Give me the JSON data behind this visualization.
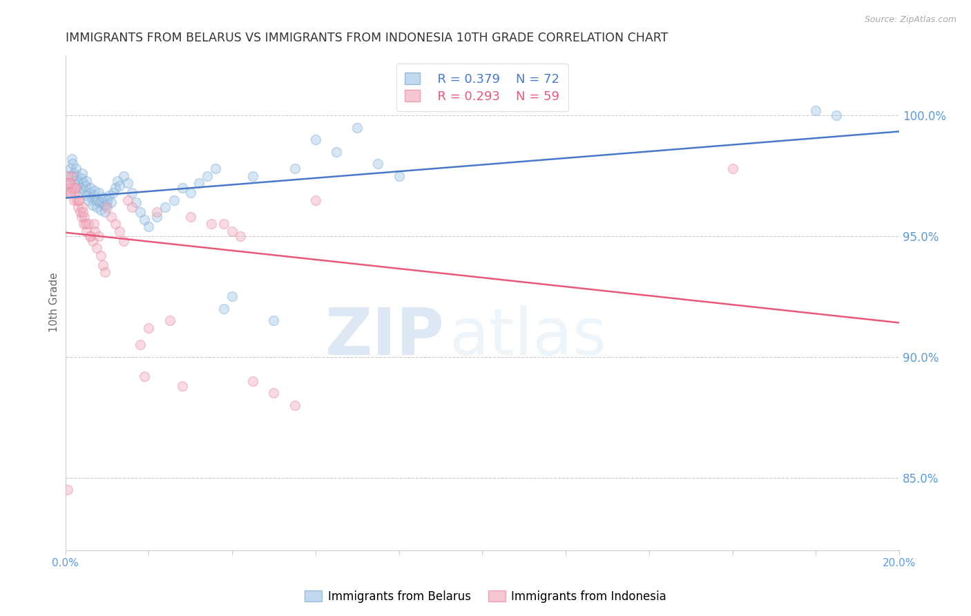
{
  "title": "IMMIGRANTS FROM BELARUS VS IMMIGRANTS FROM INDONESIA 10TH GRADE CORRELATION CHART",
  "source": "Source: ZipAtlas.com",
  "ylabel": "10th Grade",
  "xlim": [
    0.0,
    20.0
  ],
  "ylim": [
    82.0,
    102.5
  ],
  "xticks": [
    0.0,
    2.0,
    4.0,
    6.0,
    8.0,
    10.0,
    12.0,
    14.0,
    16.0,
    18.0,
    20.0
  ],
  "xticklabels": [
    "0.0%",
    "",
    "",
    "",
    "",
    "",
    "",
    "",
    "",
    "",
    "20.0%"
  ],
  "yticks_right": [
    85.0,
    90.0,
    95.0,
    100.0
  ],
  "yticklabels_right": [
    "85.0%",
    "90.0%",
    "95.0%",
    "100.0%"
  ],
  "grid_color": "#cccccc",
  "background_color": "#ffffff",
  "legend_r_belarus": "R = 0.379",
  "legend_n_belarus": "N = 72",
  "legend_r_indonesia": "R = 0.293",
  "legend_n_indonesia": "N = 59",
  "series1_label": "Immigrants from Belarus",
  "series2_label": "Immigrants from Indonesia",
  "series1_color": "#a8c8e8",
  "series2_color": "#f0b0c0",
  "series1_edge_color": "#7aaad0",
  "series2_edge_color": "#e888a0",
  "series1_line_color": "#4878c8",
  "series2_line_color": "#e85878",
  "watermark_zip": "ZIP",
  "watermark_atlas": "atlas",
  "title_color": "#333333",
  "right_axis_color": "#5b9bd5",
  "marker_size": 100,
  "marker_alpha": 0.45,
  "line_width": 1.8,
  "belarus_x": [
    0.05,
    0.08,
    0.1,
    0.12,
    0.15,
    0.18,
    0.2,
    0.22,
    0.25,
    0.28,
    0.3,
    0.32,
    0.35,
    0.38,
    0.4,
    0.43,
    0.45,
    0.48,
    0.5,
    0.52,
    0.55,
    0.58,
    0.6,
    0.63,
    0.65,
    0.68,
    0.7,
    0.73,
    0.75,
    0.78,
    0.8,
    0.83,
    0.85,
    0.88,
    0.9,
    0.93,
    0.95,
    0.98,
    1.0,
    1.05,
    1.1,
    1.15,
    1.2,
    1.25,
    1.3,
    1.4,
    1.5,
    1.6,
    1.7,
    1.8,
    1.9,
    2.0,
    2.2,
    2.4,
    2.6,
    2.8,
    3.0,
    3.2,
    3.4,
    3.6,
    3.8,
    4.0,
    4.5,
    5.0,
    5.5,
    6.0,
    6.5,
    7.0,
    7.5,
    8.0,
    18.0,
    18.5
  ],
  "belarus_y": [
    96.8,
    97.2,
    97.5,
    97.8,
    98.2,
    98.0,
    97.6,
    97.3,
    97.8,
    97.5,
    97.2,
    96.8,
    97.0,
    97.4,
    97.6,
    97.2,
    96.9,
    97.1,
    97.3,
    96.7,
    96.5,
    96.8,
    97.0,
    96.6,
    96.3,
    96.7,
    96.9,
    96.5,
    96.2,
    96.5,
    96.8,
    96.4,
    96.1,
    96.4,
    96.6,
    96.3,
    96.0,
    96.3,
    96.5,
    96.7,
    96.4,
    96.8,
    97.0,
    97.3,
    97.1,
    97.5,
    97.2,
    96.8,
    96.4,
    96.0,
    95.7,
    95.4,
    95.8,
    96.2,
    96.5,
    97.0,
    96.8,
    97.2,
    97.5,
    97.8,
    92.0,
    92.5,
    97.5,
    91.5,
    97.8,
    99.0,
    98.5,
    99.5,
    98.0,
    97.5,
    100.2,
    100.0
  ],
  "indonesia_x": [
    0.05,
    0.08,
    0.1,
    0.12,
    0.15,
    0.18,
    0.2,
    0.22,
    0.25,
    0.28,
    0.3,
    0.32,
    0.35,
    0.38,
    0.4,
    0.43,
    0.45,
    0.48,
    0.5,
    0.55,
    0.6,
    0.65,
    0.7,
    0.75,
    0.8,
    0.85,
    0.9,
    0.95,
    1.0,
    1.1,
    1.2,
    1.3,
    1.4,
    1.5,
    1.6,
    1.8,
    2.0,
    2.2,
    2.5,
    3.0,
    3.5,
    4.0,
    4.5,
    5.0,
    5.5,
    6.0,
    16.0,
    4.2,
    3.8,
    2.8,
    1.9,
    0.68,
    0.58,
    0.42,
    0.33,
    0.23,
    0.13,
    0.09,
    0.06
  ],
  "indonesia_y": [
    97.5,
    97.0,
    96.8,
    97.2,
    97.5,
    97.0,
    96.5,
    96.8,
    97.0,
    96.5,
    96.2,
    96.5,
    96.0,
    95.8,
    96.2,
    95.5,
    95.8,
    95.5,
    95.2,
    95.5,
    95.0,
    94.8,
    95.2,
    94.5,
    95.0,
    94.2,
    93.8,
    93.5,
    96.2,
    95.8,
    95.5,
    95.2,
    94.8,
    96.5,
    96.2,
    90.5,
    91.2,
    96.0,
    91.5,
    95.8,
    95.5,
    95.2,
    89.0,
    88.5,
    88.0,
    96.5,
    97.8,
    95.0,
    95.5,
    88.8,
    89.2,
    95.5,
    95.0,
    96.0,
    96.5,
    97.0,
    96.8,
    97.2,
    84.5
  ]
}
